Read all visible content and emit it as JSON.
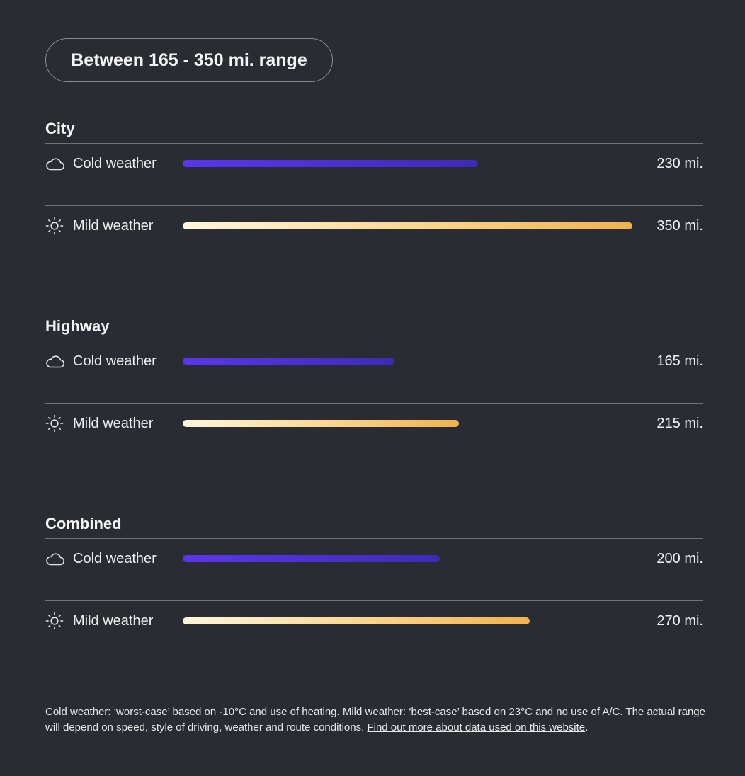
{
  "range_pill": "Between 165 - 350 mi. range",
  "colors": {
    "background": "#292d33",
    "cold_bar": "#4a30d6",
    "mild_bar_start": "#fff6dc",
    "mild_bar_end": "#f0b24e"
  },
  "icons": {
    "cold": "cloud-icon",
    "mild": "sun-icon"
  },
  "chart_data": {
    "type": "bar",
    "orientation": "horizontal",
    "max_value": 350,
    "unit": "mi.",
    "groups": [
      {
        "name": "City",
        "rows": [
          {
            "label": "Cold weather",
            "icon": "cloud-icon",
            "kind": "cold",
            "value": 230,
            "value_label": "230 mi."
          },
          {
            "label": "Mild weather",
            "icon": "sun-icon",
            "kind": "mild",
            "value": 350,
            "value_label": "350 mi."
          }
        ]
      },
      {
        "name": "Highway",
        "rows": [
          {
            "label": "Cold weather",
            "icon": "cloud-icon",
            "kind": "cold",
            "value": 165,
            "value_label": "165 mi."
          },
          {
            "label": "Mild weather",
            "icon": "sun-icon",
            "kind": "mild",
            "value": 215,
            "value_label": "215 mi."
          }
        ]
      },
      {
        "name": "Combined",
        "rows": [
          {
            "label": "Cold weather",
            "icon": "cloud-icon",
            "kind": "cold",
            "value": 200,
            "value_label": "200 mi."
          },
          {
            "label": "Mild weather",
            "icon": "sun-icon",
            "kind": "mild",
            "value": 270,
            "value_label": "270 mi."
          }
        ]
      }
    ]
  },
  "footnote": {
    "text": "Cold weather: ‘worst-case’ based on -10°C and use of heating. Mild weather: ‘best-case’ based on 23°C and no use of A/C. The actual range will depend on speed, style of driving, weather and route conditions. ",
    "link_text": "Find out more about data used on this website",
    "after_link": "."
  }
}
